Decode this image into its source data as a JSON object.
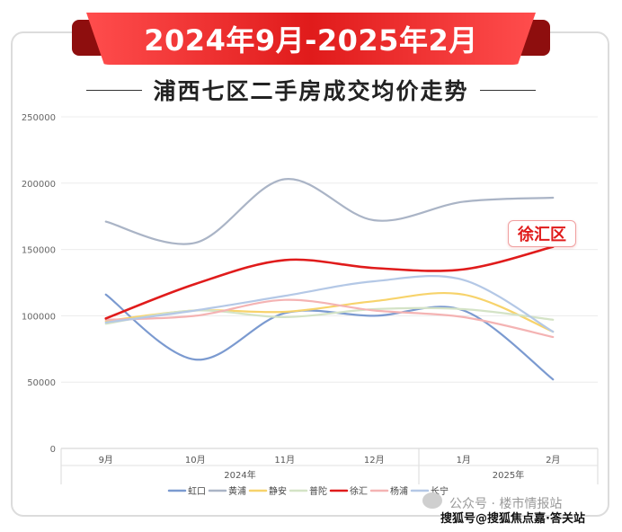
{
  "banner_title": "2024年9月-2025年2月",
  "subtitle": "浦西七区二手房成交均价走势",
  "callout_label": "徐汇区",
  "watermark": {
    "line1": "公众号 · 楼市情报站",
    "line2": "搜狐号@搜狐焦点嘉·答关站"
  },
  "chart_data": {
    "type": "line",
    "x": [
      "9月",
      "10月",
      "11月",
      "12月",
      "1月",
      "2月"
    ],
    "x_groups": [
      {
        "label": "2024年",
        "span": [
          0,
          3
        ]
      },
      {
        "label": "2025年",
        "span": [
          4,
          5
        ]
      }
    ],
    "ylim": [
      0,
      250000
    ],
    "yticks": [
      0,
      50000,
      100000,
      150000,
      200000,
      250000
    ],
    "grid": true,
    "legend_position": "bottom",
    "series": [
      {
        "name": "虹口",
        "color": "#7b9ad0",
        "values": [
          116000,
          67000,
          102000,
          100000,
          104000,
          52000
        ]
      },
      {
        "name": "黄浦",
        "color": "#aab4c6",
        "values": [
          171000,
          155000,
          203000,
          172000,
          186000,
          189000
        ]
      },
      {
        "name": "静安",
        "color": "#f7d36b",
        "values": [
          96000,
          104000,
          103000,
          111000,
          116000,
          88000
        ]
      },
      {
        "name": "普陀",
        "color": "#d4e3c6",
        "values": [
          94000,
          104000,
          99000,
          105000,
          105000,
          97000
        ]
      },
      {
        "name": "徐汇",
        "color": "#e01b1b",
        "values": [
          98000,
          124000,
          142000,
          136000,
          135000,
          152000
        ]
      },
      {
        "name": "杨浦",
        "color": "#f4b3b3",
        "values": [
          97000,
          100000,
          112000,
          104000,
          99000,
          84000
        ]
      },
      {
        "name": "长宁",
        "color": "#b4c8e6",
        "values": [
          95000,
          104000,
          115000,
          126000,
          127000,
          88000
        ]
      }
    ]
  }
}
